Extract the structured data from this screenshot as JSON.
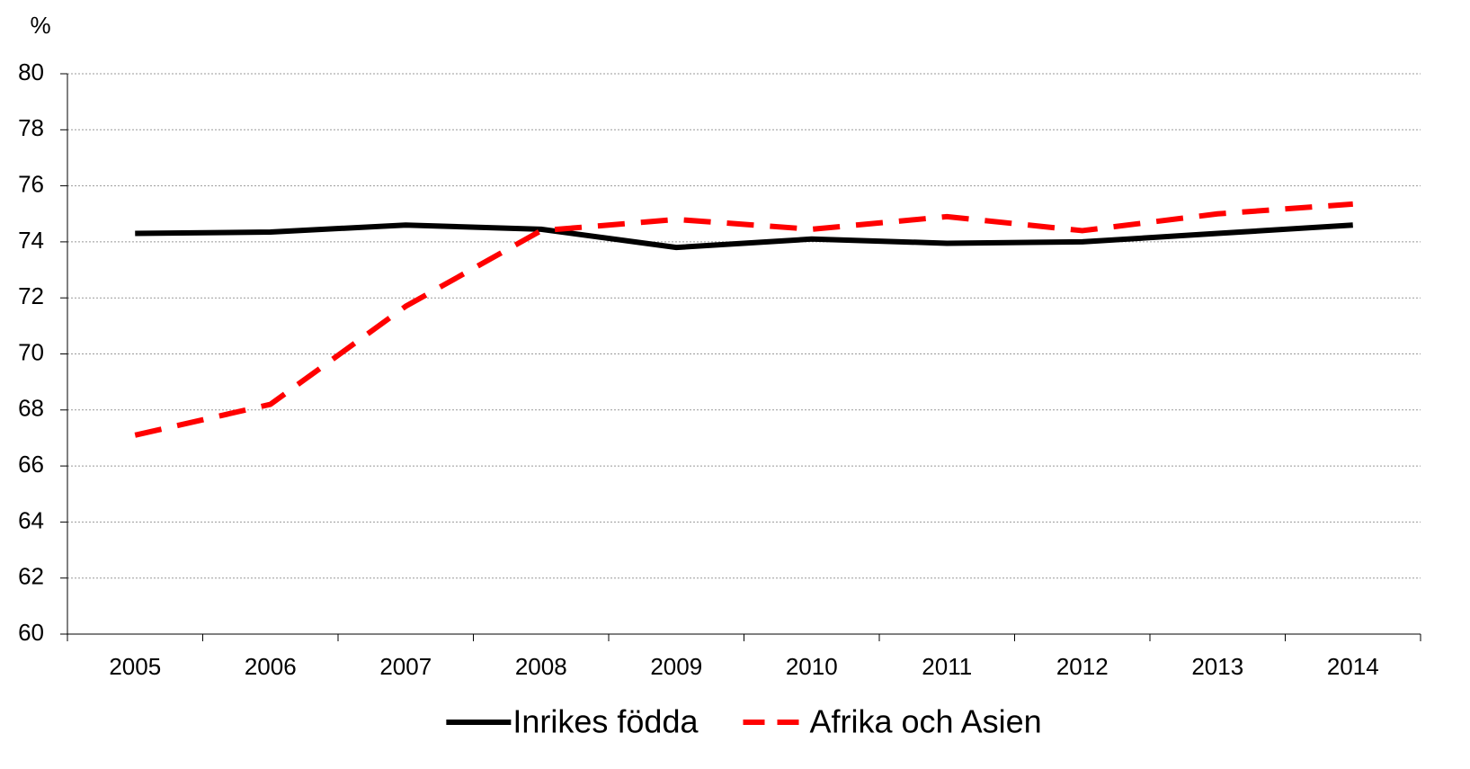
{
  "chart_data": {
    "type": "line",
    "y_label": "%",
    "categories": [
      "2005",
      "2006",
      "2007",
      "2008",
      "2009",
      "2010",
      "2011",
      "2012",
      "2013",
      "2014"
    ],
    "series": [
      {
        "name": "Inrikes födda",
        "color": "#000000",
        "line_style": "solid",
        "values": [
          74.3,
          74.35,
          74.6,
          74.45,
          73.8,
          74.1,
          73.95,
          74.0,
          74.3,
          74.6
        ]
      },
      {
        "name": "Afrika och Asien",
        "color": "#ff0000",
        "line_style": "dashed",
        "values": [
          67.1,
          68.2,
          71.7,
          74.4,
          74.8,
          74.45,
          74.9,
          74.4,
          75.0,
          75.35
        ]
      }
    ],
    "ylim": [
      60,
      80
    ],
    "yticks": [
      60,
      62,
      64,
      66,
      68,
      70,
      72,
      74,
      76,
      78,
      80
    ],
    "grid": true,
    "legend": "bottom"
  }
}
